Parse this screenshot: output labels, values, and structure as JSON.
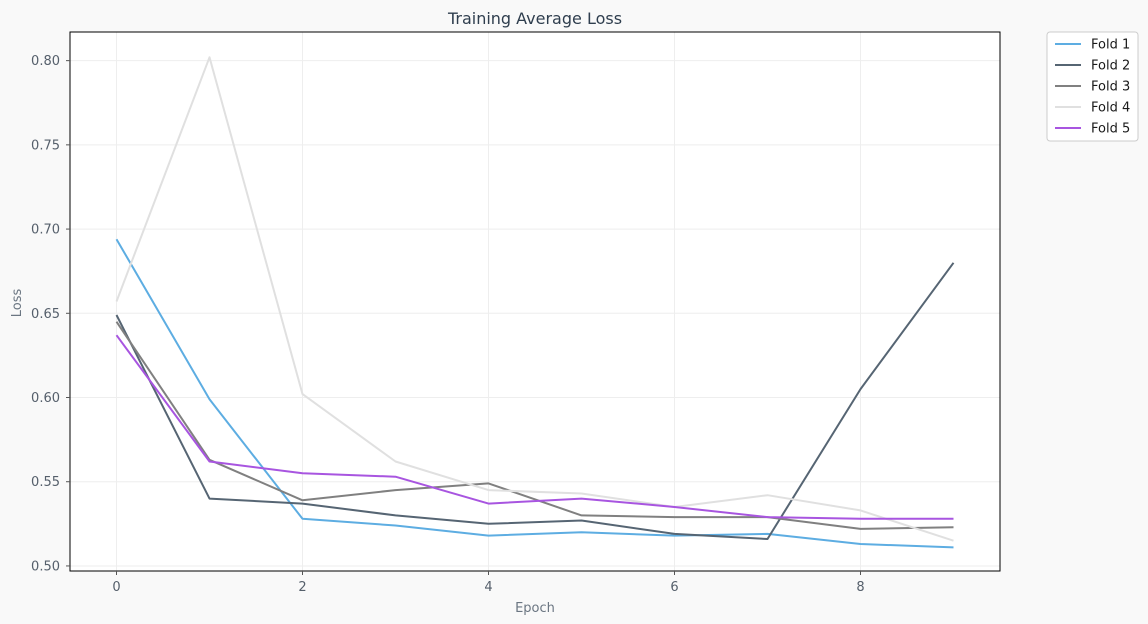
{
  "chart_data": {
    "type": "line",
    "title": "Training Average Loss",
    "xlabel": "Epoch",
    "ylabel": "Loss",
    "xlim": [
      -0.5,
      9.5
    ],
    "ylim": [
      0.497,
      0.817
    ],
    "xticks": [
      0,
      2,
      4,
      6,
      8
    ],
    "yticks": [
      0.5,
      0.55,
      0.6,
      0.65,
      0.7,
      0.75,
      0.8
    ],
    "ytick_labels": [
      "0.50",
      "0.55",
      "0.60",
      "0.65",
      "0.70",
      "0.75",
      "0.80"
    ],
    "grid": true,
    "legend_position": "outside-top-right",
    "x": [
      0,
      1,
      2,
      3,
      4,
      5,
      6,
      7,
      8,
      9
    ],
    "series": [
      {
        "name": "Fold 1",
        "color": "#5dade2",
        "values": [
          0.694,
          0.599,
          0.528,
          0.524,
          0.518,
          0.52,
          0.518,
          0.519,
          0.513,
          0.511
        ]
      },
      {
        "name": "Fold 2",
        "color": "#566573",
        "values": [
          0.649,
          0.54,
          0.537,
          0.53,
          0.525,
          0.527,
          0.519,
          0.516,
          0.605,
          0.68
        ]
      },
      {
        "name": "Fold 3",
        "color": "#808080",
        "values": [
          0.645,
          0.563,
          0.539,
          0.545,
          0.549,
          0.53,
          0.529,
          0.529,
          0.522,
          0.523
        ]
      },
      {
        "name": "Fold 4",
        "color": "#e0e0e0",
        "values": [
          0.657,
          0.802,
          0.602,
          0.562,
          0.545,
          0.543,
          0.535,
          0.542,
          0.533,
          0.515
        ]
      },
      {
        "name": "Fold 5",
        "color": "#a855e0",
        "values": [
          0.637,
          0.562,
          0.555,
          0.553,
          0.537,
          0.54,
          0.535,
          0.529,
          0.528,
          0.528
        ]
      }
    ]
  }
}
